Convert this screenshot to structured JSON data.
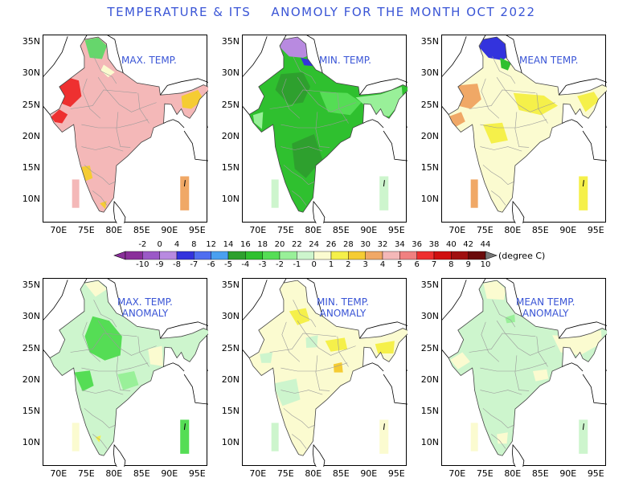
{
  "title": "TEMPERATURE & ITS    ANOMOLY FOR THE MONTH OCT 2022",
  "panels": [
    {
      "id": "max-temp",
      "label": "MAX. TEMP.",
      "theme": "max"
    },
    {
      "id": "min-temp",
      "label": "MIN. TEMP.",
      "theme": "min"
    },
    {
      "id": "mean-temp",
      "label": "MEAN TEMP.",
      "theme": "mean"
    },
    {
      "id": "max-temp-anomaly",
      "label": "MAX. TEMP.\nANOMALY",
      "theme": "maxa"
    },
    {
      "id": "min-temp-anomaly",
      "label": "MIN. TEMP.\nANOMALY",
      "theme": "mina"
    },
    {
      "id": "mean-temp-anomaly",
      "label": "MEAN TEMP.\nANOMALY",
      "theme": "meana"
    }
  ],
  "axes": {
    "y_ticks": [
      "35N",
      "30N",
      "25N",
      "20N",
      "15N",
      "10N"
    ],
    "x_ticks": [
      "70E",
      "75E",
      "80E",
      "85E",
      "90E",
      "95E"
    ]
  },
  "legend": {
    "top_labels": [
      "-2",
      "0",
      "4",
      "8",
      "12",
      "14",
      "16",
      "18",
      "20",
      "22",
      "24",
      "26",
      "28",
      "30",
      "32",
      "34",
      "36",
      "38",
      "40",
      "42",
      "44"
    ],
    "bottom_labels": [
      "-10",
      "-9",
      "-8",
      "-7",
      "-6",
      "-5",
      "-4",
      "-3",
      "-2",
      "-1",
      "0",
      "1",
      "2",
      "3",
      "4",
      "5",
      "6",
      "7",
      "8",
      "9",
      "10"
    ],
    "colors": [
      "#8a2f9a",
      "#9b59c7",
      "#b88ae0",
      "#3333dd",
      "#4f6ef0",
      "#4aa0f0",
      "#2ea02e",
      "#2fc02f",
      "#55dd55",
      "#99f099",
      "#cdf5cd",
      "#fbfbd0",
      "#f5f04a",
      "#f5cc33",
      "#f0a866",
      "#f4b8b8",
      "#f08080",
      "#ee3030",
      "#d01010",
      "#a01010",
      "#6a0a0a"
    ],
    "unit": "(degree C)"
  }
}
